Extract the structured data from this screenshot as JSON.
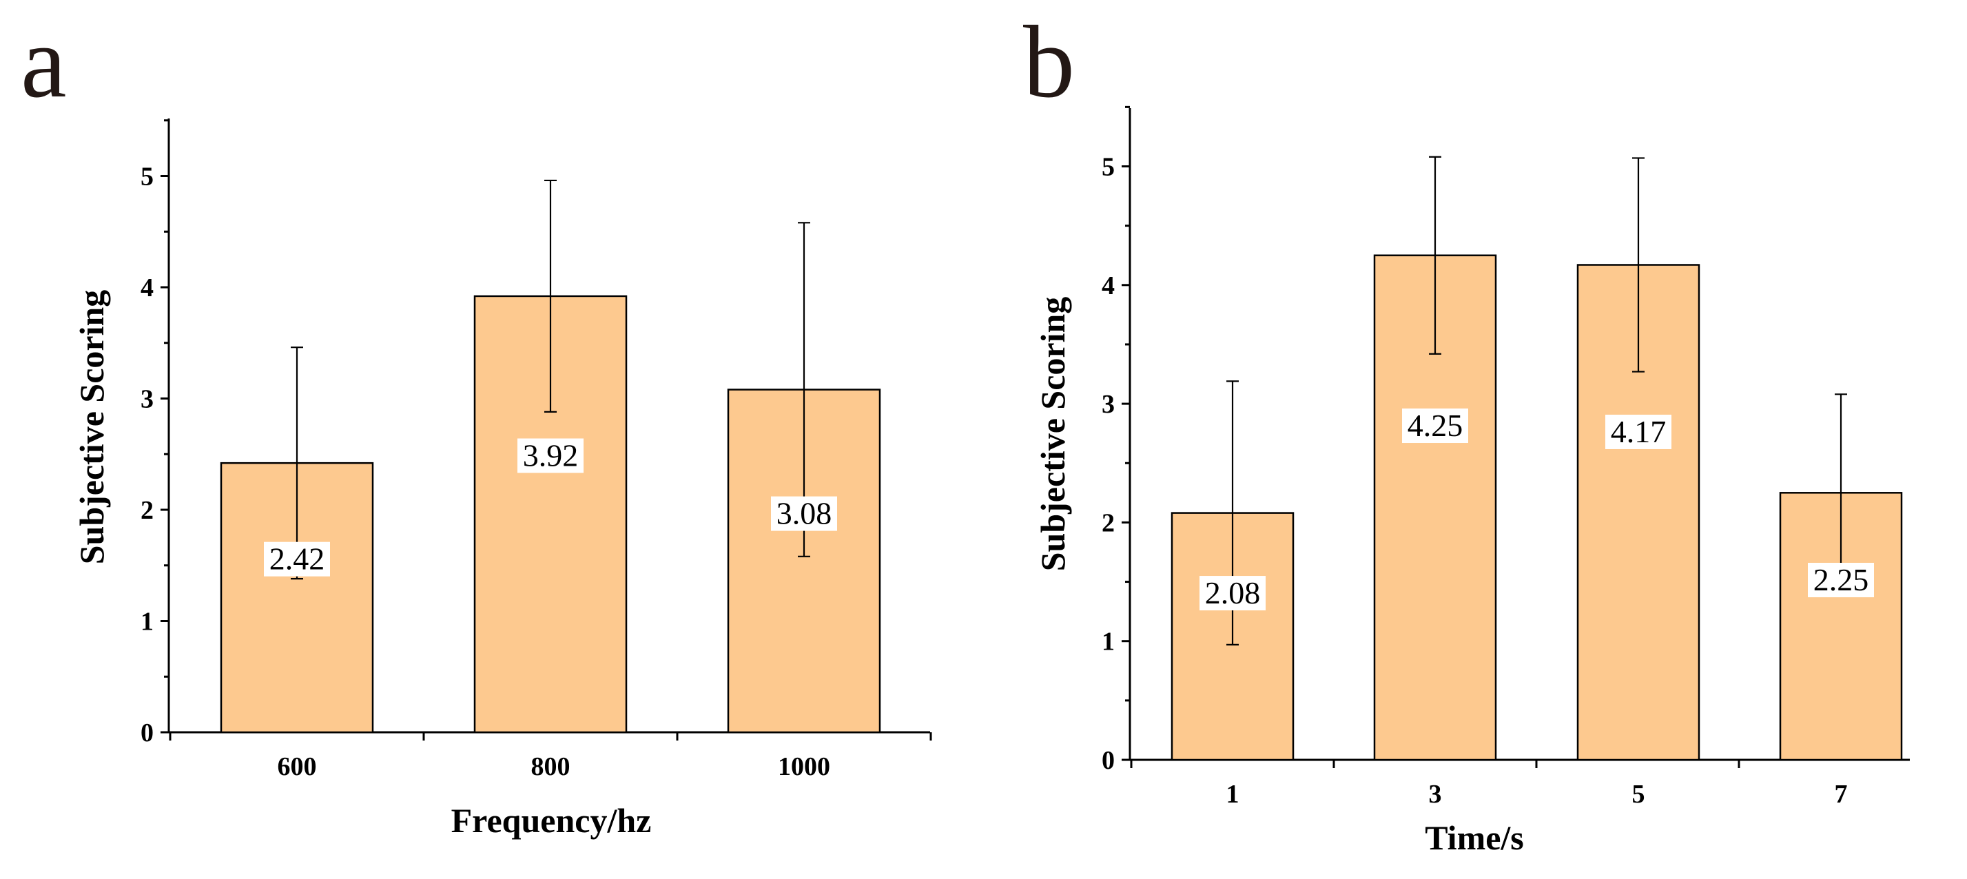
{
  "chart_data": [
    {
      "type": "bar",
      "panel_label": "a",
      "categories": [
        "600",
        "800",
        "1000"
      ],
      "values": [
        2.42,
        3.92,
        3.08
      ],
      "errors": [
        1.04,
        1.04,
        1.5
      ],
      "data_labels": [
        "2.42",
        "3.92",
        "3.08"
      ],
      "xlabel": "Frequency/hz",
      "ylabel": "Subjective Scoring",
      "ylim": [
        0,
        5.5
      ],
      "yticks": [
        "0",
        "1",
        "2",
        "3",
        "4",
        "5"
      ],
      "bar_color": "#FDC98F",
      "grid": false
    },
    {
      "type": "bar",
      "panel_label": "b",
      "categories": [
        "1",
        "3",
        "5",
        "7"
      ],
      "values": [
        2.08,
        4.25,
        4.17,
        2.25
      ],
      "errors": [
        1.11,
        0.83,
        0.9,
        0.83
      ],
      "data_labels": [
        "2.08",
        "4.25",
        "4.17",
        "2.25"
      ],
      "xlabel": "Time/s",
      "ylabel": "Subjective Scoring",
      "ylim": [
        0,
        5.5
      ],
      "yticks": [
        "0",
        "1",
        "2",
        "3",
        "4",
        "5"
      ],
      "bar_color": "#FDC98F",
      "grid": false
    }
  ]
}
